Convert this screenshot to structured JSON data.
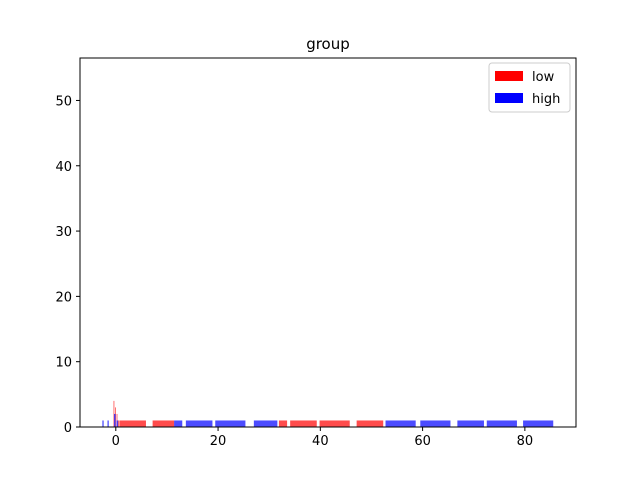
{
  "chart_data": {
    "type": "bar",
    "title": "group",
    "xlabel": "",
    "ylabel": "",
    "xlim": [
      -7,
      90
    ],
    "ylim": [
      0,
      56.5
    ],
    "xticks": [
      0,
      20,
      40,
      60,
      80
    ],
    "yticks": [
      0,
      10,
      20,
      30,
      40,
      50
    ],
    "grid": false,
    "legend_position": "top-right",
    "series": [
      {
        "name": "low",
        "color": "#ff0000",
        "bars": [
          {
            "x": -0.4,
            "width": 0.08,
            "value": 4
          },
          {
            "x": -0.1,
            "width": 0.08,
            "value": 3
          },
          {
            "x": 0.2,
            "width": 0.08,
            "value": 2
          },
          {
            "x": 0.5,
            "width": 0.08,
            "value": 1
          },
          {
            "x": 3.3,
            "width": 5.2,
            "value": 1
          },
          {
            "x": 9.3,
            "width": 4.2,
            "value": 1
          },
          {
            "x": 32.7,
            "width": 1.6,
            "value": 1
          },
          {
            "x": 36.7,
            "width": 5.2,
            "value": 1
          },
          {
            "x": 42.8,
            "width": 5.9,
            "value": 1
          },
          {
            "x": 49.7,
            "width": 5.2,
            "value": 1
          }
        ]
      },
      {
        "name": "high",
        "color": "#0000ff",
        "bars": [
          {
            "x": -2.5,
            "width": 0.25,
            "value": 1
          },
          {
            "x": -1.5,
            "width": 0.25,
            "value": 1
          },
          {
            "x": -0.2,
            "width": 0.3,
            "value": 2
          },
          {
            "x": 0.3,
            "width": 0.3,
            "value": 1
          },
          {
            "x": 12.2,
            "width": 1.6,
            "value": 1
          },
          {
            "x": 16.3,
            "width": 5.2,
            "value": 1
          },
          {
            "x": 22.4,
            "width": 5.9,
            "value": 1
          },
          {
            "x": 29.3,
            "width": 4.6,
            "value": 1
          },
          {
            "x": 55.7,
            "width": 5.9,
            "value": 1
          },
          {
            "x": 62.5,
            "width": 5.9,
            "value": 1
          },
          {
            "x": 69.4,
            "width": 5.2,
            "value": 1
          },
          {
            "x": 75.5,
            "width": 5.9,
            "value": 1
          },
          {
            "x": 82.6,
            "width": 5.9,
            "value": 1
          }
        ]
      }
    ]
  }
}
